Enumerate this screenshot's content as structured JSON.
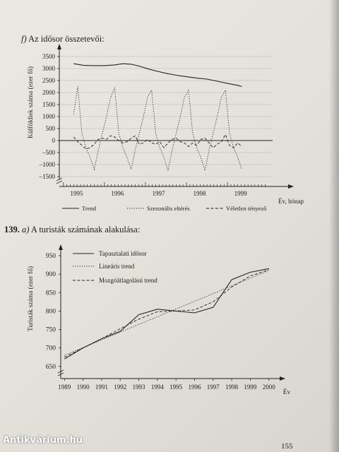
{
  "header": {
    "f_letter": "f)",
    "f_text": "Az idősor összetevői:",
    "ex_number": "139.",
    "ex_letter": "a)",
    "ex_text": "A turisták számának alakulása:"
  },
  "page_number": "155",
  "watermark": "Antikvárium.hu",
  "chart_data": [
    {
      "type": "line",
      "ylabel": "Külföldiek száma (ezer fő)",
      "xlabel": "Év, hónap",
      "ylim": [
        -1500,
        3500
      ],
      "yticks": [
        3500,
        3000,
        2500,
        2000,
        1500,
        1000,
        500,
        0,
        -500,
        -1000,
        -1500
      ],
      "ytick_labels": [
        "3500",
        "3000",
        "2500",
        "2000",
        "1500",
        "1000",
        "500",
        "0",
        "–500",
        "–1000",
        "–1500"
      ],
      "xlim": [
        1994.65,
        1999.85
      ],
      "xticks": [
        1995,
        1996,
        1997,
        1998,
        1999
      ],
      "xtick_labels": [
        "1995",
        "1996",
        "1997",
        "1998",
        "1999"
      ],
      "legend_position": "bottom",
      "series": [
        {
          "name": "Trend",
          "style": "solid",
          "x": [
            1995.0,
            1995.25,
            1995.5,
            1995.75,
            1996.0,
            1996.2,
            1996.4,
            1996.6,
            1996.8,
            1997.0,
            1997.25,
            1997.5,
            1997.75,
            1998.0,
            1998.25,
            1998.5,
            1998.75,
            1999.0,
            1999.1
          ],
          "y": [
            3200,
            3130,
            3120,
            3120,
            3150,
            3200,
            3180,
            3100,
            2990,
            2900,
            2800,
            2720,
            2660,
            2600,
            2560,
            2470,
            2380,
            2300,
            2250
          ]
        },
        {
          "name": "Szezonális eltérés",
          "style": "dotted",
          "x": [
            1995.0,
            1995.1,
            1995.2,
            1995.3,
            1995.4,
            1995.5,
            1995.6,
            1995.7,
            1995.8,
            1995.9,
            1996.0,
            1996.1,
            1996.2,
            1996.3,
            1996.4,
            1996.5,
            1996.6,
            1996.7,
            1996.8,
            1996.9,
            1997.0,
            1997.1,
            1997.2,
            1997.3,
            1997.4,
            1997.5,
            1997.6,
            1997.7,
            1997.8,
            1997.9,
            1998.0,
            1998.1,
            1998.2,
            1998.3,
            1998.4,
            1998.5,
            1998.6,
            1998.7,
            1998.8,
            1998.9,
            1999.0,
            1999.1
          ],
          "y": [
            1100,
            2250,
            300,
            -300,
            -700,
            -1200,
            -400,
            300,
            1000,
            1800,
            2200,
            300,
            -300,
            -700,
            -1200,
            -400,
            300,
            1000,
            1800,
            2100,
            300,
            -300,
            -700,
            -1250,
            -400,
            300,
            1000,
            1800,
            2100,
            300,
            -300,
            -700,
            -1250,
            -400,
            300,
            1000,
            1800,
            2100,
            300,
            -300,
            -700,
            -1200
          ]
        },
        {
          "name": "Véletlen tényező",
          "style": "dashed",
          "x": [
            1995.0,
            1995.1,
            1995.2,
            1995.3,
            1995.4,
            1995.5,
            1995.6,
            1995.7,
            1995.8,
            1995.9,
            1996.0,
            1996.1,
            1996.2,
            1996.3,
            1996.4,
            1996.5,
            1996.6,
            1996.7,
            1996.8,
            1996.9,
            1997.0,
            1997.1,
            1997.2,
            1997.3,
            1997.4,
            1997.5,
            1997.6,
            1997.7,
            1997.8,
            1997.9,
            1998.0,
            1998.1,
            1998.2,
            1998.3,
            1998.4,
            1998.5,
            1998.6,
            1998.7,
            1998.8,
            1998.9,
            1999.0,
            1999.1
          ],
          "y": [
            150,
            -50,
            -200,
            -350,
            -300,
            -150,
            50,
            100,
            50,
            200,
            150,
            0,
            -100,
            -50,
            100,
            200,
            -150,
            -100,
            50,
            -100,
            -150,
            -50,
            -300,
            -100,
            50,
            100,
            -50,
            -100,
            -250,
            -100,
            -200,
            50,
            100,
            -100,
            -300,
            -150,
            -50,
            250,
            -200,
            -300,
            -100,
            -250
          ]
        }
      ]
    },
    {
      "type": "line",
      "ylabel": "Turisták száma (ezer fő)",
      "xlabel": "Év",
      "ylim": [
        640,
        950
      ],
      "yticks": [
        950,
        900,
        850,
        800,
        750,
        700,
        650
      ],
      "ytick_labels": [
        "950",
        "900",
        "850",
        "800",
        "750",
        "700",
        "650"
      ],
      "xlim": [
        1988.8,
        2000.2
      ],
      "xticks": [
        1989,
        1990,
        1991,
        1992,
        1993,
        1994,
        1995,
        1996,
        1997,
        1998,
        1999,
        2000
      ],
      "xtick_labels": [
        "1989",
        "1990",
        "1991",
        "1992",
        "1993",
        "1994",
        "1995",
        "1996",
        "1997",
        "1998",
        "1999",
        "2000"
      ],
      "legend_position": "top-left",
      "series": [
        {
          "name": "Tapasztalati idősor",
          "style": "solid",
          "x": [
            1989,
            1990,
            1991,
            1992,
            1993,
            1994,
            1995,
            1996,
            1997,
            1998,
            1999,
            2000
          ],
          "y": [
            670,
            700,
            725,
            745,
            790,
            805,
            800,
            795,
            810,
            885,
            905,
            915
          ]
        },
        {
          "name": "Lineáris trend",
          "style": "dotted",
          "x": [
            1989,
            2000
          ],
          "y": [
            680,
            910
          ]
        },
        {
          "name": "Mozgóátlagolású trend",
          "style": "dashed",
          "x": [
            1989,
            1990,
            1991,
            1992,
            1993,
            1994,
            1995,
            1996,
            1997,
            1998,
            1999,
            2000
          ],
          "y": [
            675,
            700,
            725,
            752,
            778,
            798,
            800,
            803,
            825,
            865,
            895,
            912
          ]
        }
      ]
    }
  ]
}
